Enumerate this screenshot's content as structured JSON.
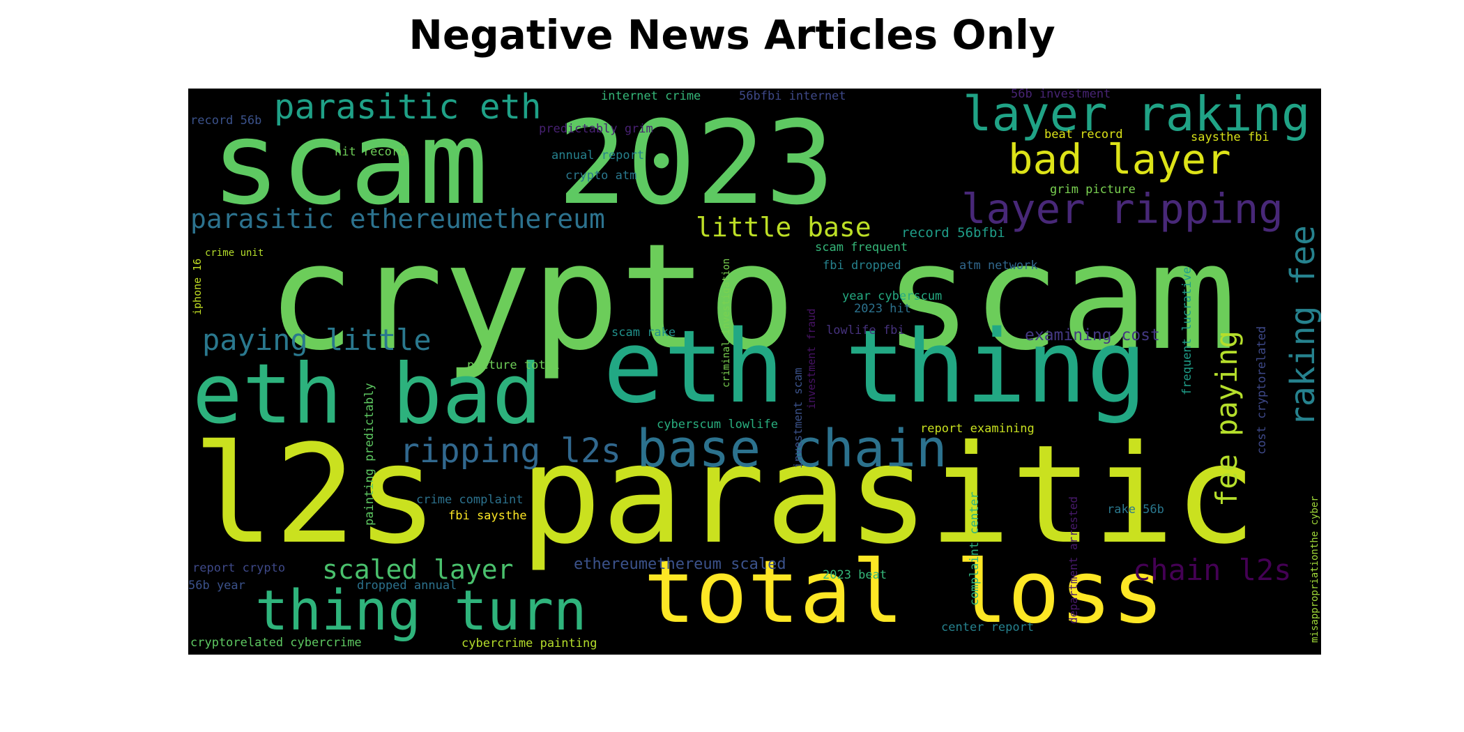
{
  "title": "Negative News Articles Only",
  "colors": {
    "background": "#000000",
    "title": "#000000"
  },
  "words": [
    {
      "text": "crypto scam",
      "color": "#6ccd5a",
      "vertical": false
    },
    {
      "text": "scam 2023",
      "color": "#5ec962",
      "vertical": false
    },
    {
      "text": "l2s parasitic",
      "color": "#cae11f",
      "vertical": false
    },
    {
      "text": "eth thing",
      "color": "#22a884",
      "vertical": false
    },
    {
      "text": "eth bad",
      "color": "#2db27d",
      "vertical": false
    },
    {
      "text": "total loss",
      "color": "#fde725",
      "vertical": false
    },
    {
      "text": "thing turn",
      "color": "#2fb47c",
      "vertical": false
    },
    {
      "text": "base chain",
      "color": "#2c728e",
      "vertical": false
    },
    {
      "text": "layer raking",
      "color": "#20a386",
      "vertical": false
    },
    {
      "text": "layer ripping",
      "color": "#482878",
      "vertical": false
    },
    {
      "text": "bad layer",
      "color": "#dde318",
      "vertical": false
    },
    {
      "text": "parasitic eth",
      "color": "#1fa187",
      "vertical": false
    },
    {
      "text": "parasitic ethereumethereum",
      "color": "#2c728e",
      "vertical": false
    },
    {
      "text": "paying little",
      "color": "#2a788e",
      "vertical": false
    },
    {
      "text": "ripping l2s",
      "color": "#31688e",
      "vertical": false
    },
    {
      "text": "little base",
      "color": "#bddf26",
      "vertical": false
    },
    {
      "text": "scaled layer",
      "color": "#4ac16d",
      "vertical": false
    },
    {
      "text": "chain l2s",
      "color": "#440154",
      "vertical": false
    },
    {
      "text": "raking fee",
      "color": "#26828e",
      "vertical": true
    },
    {
      "text": "fee paying",
      "color": "#b5de2b",
      "vertical": true
    },
    {
      "text": "ethereumethereum scaled",
      "color": "#3b528b",
      "vertical": false
    },
    {
      "text": "examining cost",
      "color": "#443983",
      "vertical": false
    },
    {
      "text": "internet crime",
      "color": "#35b779",
      "vertical": false
    },
    {
      "text": "56bfbi internet",
      "color": "#3e4989",
      "vertical": false
    },
    {
      "text": "56b investment",
      "color": "#482475",
      "vertical": false
    },
    {
      "text": "predictably grim",
      "color": "#482173",
      "vertical": false
    },
    {
      "text": "record 56b",
      "color": "#3b528b",
      "vertical": false
    },
    {
      "text": "hit record",
      "color": "#6ece58",
      "vertical": false
    },
    {
      "text": "annual report",
      "color": "#26828e",
      "vertical": false
    },
    {
      "text": "crypto atm",
      "color": "#2a788e",
      "vertical": false
    },
    {
      "text": "beat record",
      "color": "#dde318",
      "vertical": false
    },
    {
      "text": "saysthe fbi",
      "color": "#d8e219",
      "vertical": false
    },
    {
      "text": "grim picture",
      "color": "#7ad151",
      "vertical": false
    },
    {
      "text": "record 56bfbi",
      "color": "#1f9e89",
      "vertical": false
    },
    {
      "text": "crime unit",
      "color": "#b5de2b",
      "vertical": false
    },
    {
      "text": "iphone 16",
      "color": "#c2df23",
      "vertical": true
    },
    {
      "text": "scam frequent",
      "color": "#35b779",
      "vertical": false
    },
    {
      "text": "fbi dropped",
      "color": "#26828e",
      "vertical": false
    },
    {
      "text": "atm network",
      "color": "#31688e",
      "vertical": false
    },
    {
      "text": "year cyberscum",
      "color": "#25ab82",
      "vertical": false
    },
    {
      "text": "2023 hit",
      "color": "#2c728e",
      "vertical": false
    },
    {
      "text": "lowlife fbi",
      "color": "#46327e",
      "vertical": false
    },
    {
      "text": "scam rake",
      "color": "#21918c",
      "vertical": false
    },
    {
      "text": "picture total",
      "color": "#6ece58",
      "vertical": false
    },
    {
      "text": "cyberscum lowlife",
      "color": "#29af7f",
      "vertical": false
    },
    {
      "text": "report examining",
      "color": "#c8e020",
      "vertical": false
    },
    {
      "text": "crime complaint",
      "color": "#2c728e",
      "vertical": false
    },
    {
      "text": "fbi saysthe",
      "color": "#fde725",
      "vertical": false
    },
    {
      "text": "rake 56b",
      "color": "#2a788e",
      "vertical": false
    },
    {
      "text": "report crypto",
      "color": "#3e4989",
      "vertical": false
    },
    {
      "text": "56b year",
      "color": "#3b528b",
      "vertical": false
    },
    {
      "text": "dropped annual",
      "color": "#2c728e",
      "vertical": false
    },
    {
      "text": "2023 beat",
      "color": "#35b779",
      "vertical": false
    },
    {
      "text": "center report",
      "color": "#26828e",
      "vertical": false
    },
    {
      "text": "cryptorelated cybercrime",
      "color": "#5ec962",
      "vertical": false
    },
    {
      "text": "cybercrime painting",
      "color": "#b5de2b",
      "vertical": false
    },
    {
      "text": "painting predictably",
      "color": "#5ec962",
      "vertical": true
    },
    {
      "text": "criminal investigation",
      "color": "#7ad151",
      "vertical": true
    },
    {
      "text": "investment fraud",
      "color": "#471365",
      "vertical": true
    },
    {
      "text": "investment scam",
      "color": "#3b528b",
      "vertical": true
    },
    {
      "text": "frequent lucrative",
      "color": "#1f9e89",
      "vertical": true
    },
    {
      "text": "cost cryptorelated",
      "color": "#3e4989",
      "vertical": true
    },
    {
      "text": "complaint center",
      "color": "#2db27d",
      "vertical": true
    },
    {
      "text": "department arrested",
      "color": "#481a6c",
      "vertical": true
    },
    {
      "text": "misappropriationthe cyber",
      "color": "#a0da39",
      "vertical": true
    }
  ]
}
